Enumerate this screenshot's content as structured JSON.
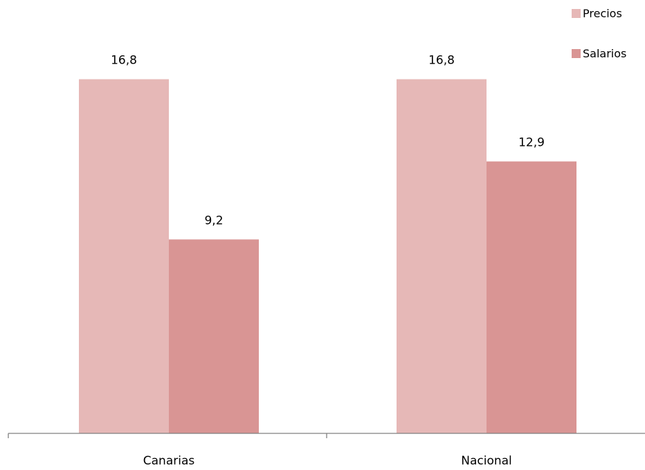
{
  "chart_data": {
    "type": "bar",
    "categories": [
      "Canarias",
      "Nacional"
    ],
    "series": [
      {
        "name": "Precios",
        "values": [
          16.8,
          16.8
        ],
        "labels": [
          "16,8",
          "16,8"
        ],
        "color": "#e6b8b7"
      },
      {
        "name": "Salarios",
        "values": [
          9.2,
          12.9
        ],
        "labels": [
          "9,2",
          "12,9"
        ],
        "color": "#d99594"
      }
    ],
    "ylim": [
      0,
      20
    ],
    "grid": false,
    "legend_position": "top-right",
    "axis_color": "#7f7f7f"
  }
}
